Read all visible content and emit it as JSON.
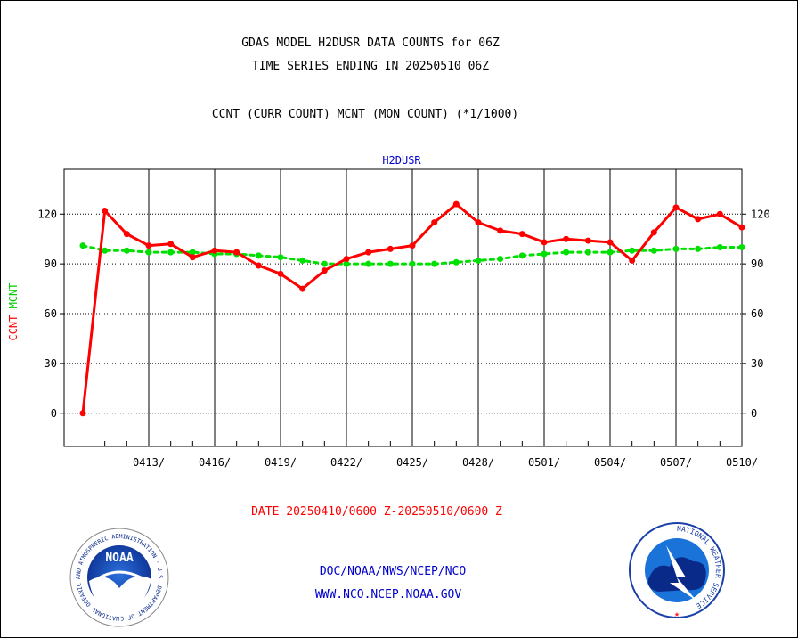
{
  "header": {
    "title_line1": "GDAS MODEL H2DUSR DATA COUNTS for 06Z",
    "title_line2": "TIME SERIES ENDING IN 20250510 06Z",
    "subtitle": "CCNT (CURR COUNT) MCNT (MON COUNT) (*1/1000)"
  },
  "chart_data": {
    "type": "line",
    "title": "H2DUSR",
    "ylabel_parts": [
      {
        "text": "CCNT",
        "color": "#ff0000"
      },
      {
        "text": "MCNT",
        "color": "#00cc00"
      }
    ],
    "xlabel": "DATE 20250410/0600 Z-20250510/0600 Z",
    "ylim": [
      -20,
      147
    ],
    "yticks": [
      0,
      30,
      60,
      90,
      120
    ],
    "x_day_range": [
      0,
      30
    ],
    "xticks": [
      {
        "day": 3,
        "label": "0413/"
      },
      {
        "day": 6,
        "label": "0416/"
      },
      {
        "day": 9,
        "label": "0419/"
      },
      {
        "day": 12,
        "label": "0422/"
      },
      {
        "day": 15,
        "label": "0425/"
      },
      {
        "day": 18,
        "label": "0428/"
      },
      {
        "day": 21,
        "label": "0501/"
      },
      {
        "day": 24,
        "label": "0504/"
      },
      {
        "day": 27,
        "label": "0507/"
      },
      {
        "day": 30,
        "label": "0510/"
      }
    ],
    "vertical_grid_days": [
      3,
      6,
      9,
      12,
      15,
      18,
      21,
      24,
      27,
      30
    ],
    "dates": [
      "0410",
      "0411",
      "0412",
      "0413",
      "0414",
      "0415",
      "0416",
      "0417",
      "0418",
      "0419",
      "0420",
      "0421",
      "0422",
      "0423",
      "0424",
      "0425",
      "0426",
      "0427",
      "0428",
      "0429",
      "0430",
      "0501",
      "0502",
      "0503",
      "0504",
      "0505",
      "0506",
      "0507",
      "0508",
      "0509",
      "0510"
    ],
    "series": [
      {
        "name": "CCNT",
        "color": "#ff0000",
        "values": [
          0,
          122,
          108,
          101,
          102,
          94,
          98,
          97,
          89,
          84,
          75,
          86,
          93,
          97,
          99,
          101,
          115,
          126,
          115,
          110,
          108,
          103,
          105,
          104,
          103,
          92,
          109,
          124,
          117,
          120,
          112
        ]
      },
      {
        "name": "MCNT",
        "color": "#00e000",
        "values": [
          101,
          98,
          98,
          97,
          97,
          97,
          96,
          96,
          95,
          94,
          92,
          90,
          90,
          90,
          90,
          90,
          90,
          91,
          92,
          93,
          95,
          96,
          97,
          97,
          97,
          98,
          98,
          99,
          99,
          100,
          100
        ]
      }
    ]
  },
  "footer": {
    "link1": "DOC/NOAA/NWS/NCEP/NCO",
    "link2": "WWW.NCO.NCEP.NOAA.GOV",
    "noaa_logo_text": "NOAA",
    "noaa_ring_text": "NATIONAL OCEANIC AND ATMOSPHERIC ADMINISTRATION · U.S. DEPARTMENT OF COMMERCE ·",
    "nws_ring_text": "NATIONAL WEATHER SERVICE"
  }
}
